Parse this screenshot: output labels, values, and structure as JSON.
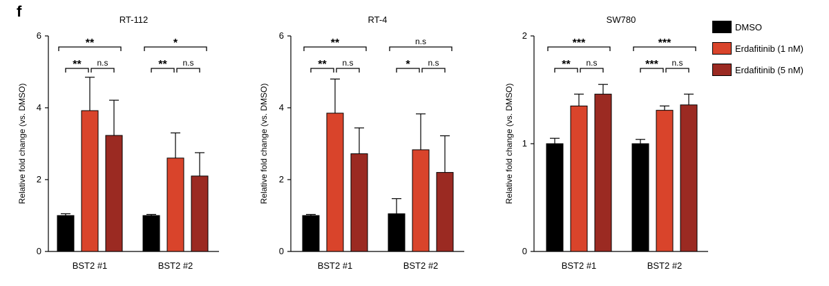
{
  "panel_letter": "f",
  "legend": [
    {
      "label": "DMSO",
      "color": "#000000"
    },
    {
      "label": "Erdafitinib (1 nM)",
      "color": "#d9442b"
    },
    {
      "label": "Erdafitinib (5 nM)",
      "color": "#9b2a22"
    }
  ],
  "chart_data": [
    {
      "type": "bar",
      "title": "RT-112",
      "ylabel": "Relative fold change (vs. DMSO)",
      "xlabel": "",
      "categories": [
        "BST2 #1",
        "BST2 #2"
      ],
      "ylim": [
        0,
        6
      ],
      "yticks": [
        0,
        2,
        4,
        6
      ],
      "series": [
        {
          "name": "DMSO",
          "values": [
            1.0,
            1.0
          ],
          "errors": [
            0.05,
            0.03
          ]
        },
        {
          "name": "Erdafitinib (1 nM)",
          "values": [
            3.92,
            2.6
          ],
          "errors": [
            0.93,
            0.7
          ]
        },
        {
          "name": "Erdafitinib (5 nM)",
          "values": [
            3.23,
            2.1
          ],
          "errors": [
            0.98,
            0.65
          ]
        }
      ],
      "significance": [
        {
          "group": 0,
          "from": 0,
          "to": 2,
          "level": 2,
          "label": "**"
        },
        {
          "group": 0,
          "from": 0,
          "to": 1,
          "level": 1,
          "label": "**"
        },
        {
          "group": 0,
          "from": 1,
          "to": 2,
          "level": 1,
          "label": "n.s"
        },
        {
          "group": 1,
          "from": 0,
          "to": 2,
          "level": 2,
          "label": "*"
        },
        {
          "group": 1,
          "from": 0,
          "to": 1,
          "level": 1,
          "label": "**"
        },
        {
          "group": 1,
          "from": 1,
          "to": 2,
          "level": 1,
          "label": "n.s"
        }
      ]
    },
    {
      "type": "bar",
      "title": "RT-4",
      "ylabel": "Relative fold change (vs. DMSO)",
      "xlabel": "",
      "categories": [
        "BST2 #1",
        "BST2 #2"
      ],
      "ylim": [
        0,
        6
      ],
      "yticks": [
        0,
        2,
        4,
        6
      ],
      "series": [
        {
          "name": "DMSO",
          "values": [
            1.0,
            1.05
          ],
          "errors": [
            0.03,
            0.42
          ]
        },
        {
          "name": "Erdafitinib (1 nM)",
          "values": [
            3.85,
            2.83
          ],
          "errors": [
            0.95,
            1.0
          ]
        },
        {
          "name": "Erdafitinib (5 nM)",
          "values": [
            2.72,
            2.2
          ],
          "errors": [
            0.72,
            1.02
          ]
        }
      ],
      "significance": [
        {
          "group": 0,
          "from": 0,
          "to": 2,
          "level": 2,
          "label": "**"
        },
        {
          "group": 0,
          "from": 0,
          "to": 1,
          "level": 1,
          "label": "**"
        },
        {
          "group": 0,
          "from": 1,
          "to": 2,
          "level": 1,
          "label": "n.s"
        },
        {
          "group": 1,
          "from": 0,
          "to": 2,
          "level": 2,
          "label": "n.s"
        },
        {
          "group": 1,
          "from": 0,
          "to": 1,
          "level": 1,
          "label": "*"
        },
        {
          "group": 1,
          "from": 1,
          "to": 2,
          "level": 1,
          "label": "n.s"
        }
      ]
    },
    {
      "type": "bar",
      "title": "SW780",
      "ylabel": "Relative fold change (vs. DMSO)",
      "xlabel": "",
      "categories": [
        "BST2 #1",
        "BST2 #2"
      ],
      "ylim": [
        0,
        2
      ],
      "yticks": [
        0,
        1,
        2
      ],
      "series": [
        {
          "name": "DMSO",
          "values": [
            1.0,
            1.0
          ],
          "errors": [
            0.05,
            0.04
          ]
        },
        {
          "name": "Erdafitinib (1 nM)",
          "values": [
            1.35,
            1.31
          ],
          "errors": [
            0.11,
            0.04
          ]
        },
        {
          "name": "Erdafitinib (5 nM)",
          "values": [
            1.46,
            1.36
          ],
          "errors": [
            0.09,
            0.1
          ]
        }
      ],
      "significance": [
        {
          "group": 0,
          "from": 0,
          "to": 2,
          "level": 2,
          "label": "***"
        },
        {
          "group": 0,
          "from": 0,
          "to": 1,
          "level": 1,
          "label": "**"
        },
        {
          "group": 0,
          "from": 1,
          "to": 2,
          "level": 1,
          "label": "n.s"
        },
        {
          "group": 1,
          "from": 0,
          "to": 2,
          "level": 2,
          "label": "***"
        },
        {
          "group": 1,
          "from": 0,
          "to": 1,
          "level": 1,
          "label": "***"
        },
        {
          "group": 1,
          "from": 1,
          "to": 2,
          "level": 1,
          "label": "n.s"
        }
      ]
    }
  ]
}
